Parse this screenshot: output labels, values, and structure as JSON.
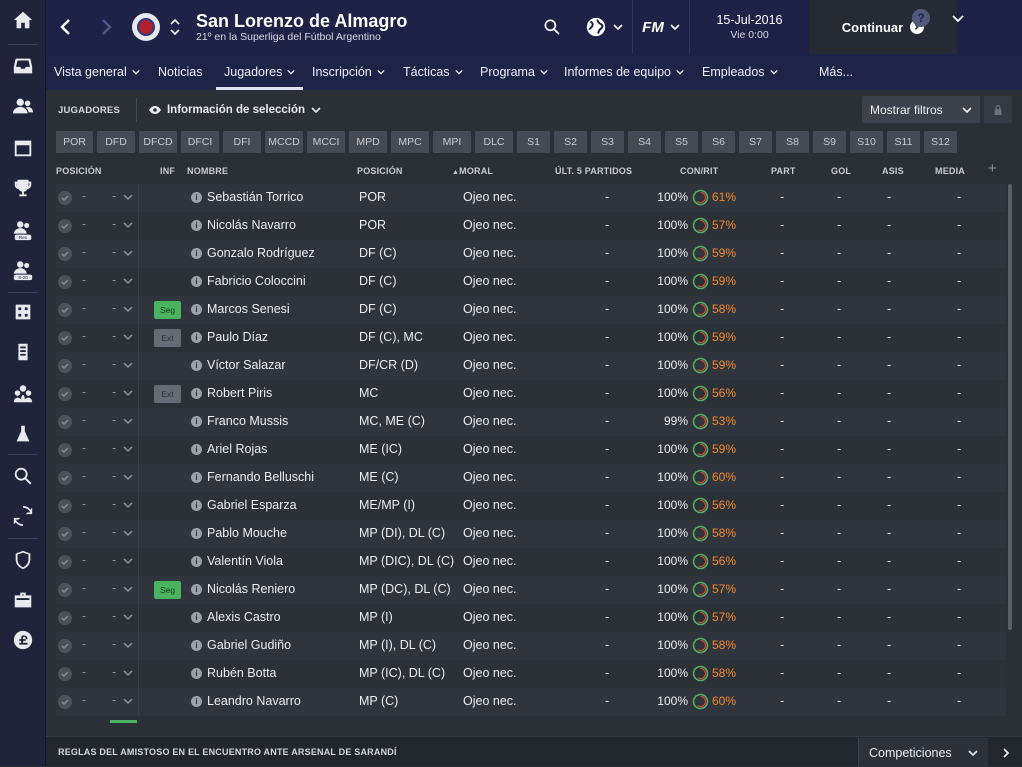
{
  "header": {
    "club_name": "San Lorenzo de Almagro",
    "club_subtitle": "21º en la Superliga del Fútbol Argentino",
    "date": "15-Jul-2016",
    "time": "Vie 0:00",
    "continue_label": "Continuar",
    "fm_label": "FM"
  },
  "tabs": [
    {
      "label": "Vista general",
      "chevron": true
    },
    {
      "label": "Noticias",
      "chevron": false
    },
    {
      "label": "Jugadores",
      "chevron": true,
      "active": true
    },
    {
      "label": "Inscripción",
      "chevron": true
    },
    {
      "label": "Tácticas",
      "chevron": true
    },
    {
      "label": "Programa",
      "chevron": true
    },
    {
      "label": "Informes de equipo",
      "chevron": true
    },
    {
      "label": "Empleados",
      "chevron": true
    },
    {
      "label": "Más...",
      "chevron": true
    }
  ],
  "help_label": "?",
  "filterbar": {
    "section_label": "JUGADORES",
    "view_label": "Información de selección",
    "filters_label": "Mostrar filtros"
  },
  "position_chips": [
    "POR",
    "DFD",
    "DFCD",
    "DFCI",
    "DFI",
    "MCCD",
    "MCCI",
    "MPD",
    "MPC",
    "MPI",
    "DLC",
    "S1",
    "S2",
    "S3",
    "S4",
    "S5",
    "S6",
    "S7",
    "S8",
    "S9",
    "S10",
    "S11",
    "S12"
  ],
  "columns": {
    "posicion": "POSICIÓN",
    "inf": "INF",
    "nombre": "NOMBRE",
    "posicion2": "POSICIÓN",
    "moral": "MORAL",
    "ult5": "ÚLT. 5 PARTIDOS",
    "conrit": "CON/RIT",
    "part": "PART",
    "gol": "GOL",
    "asis": "ASIS",
    "media": "MEDIA"
  },
  "players": [
    {
      "dash1": "-",
      "dash2": "-",
      "inf": "",
      "name": "Sebastián Torrico",
      "position": "POR",
      "morale": "Ojeo nec.",
      "last5": "-",
      "condition": "100%",
      "sharpness": "61%",
      "apps": "-",
      "goals": "-",
      "assists": "-",
      "rating": "-"
    },
    {
      "dash1": "-",
      "dash2": "-",
      "inf": "",
      "name": "Nicolás Navarro",
      "position": "POR",
      "morale": "Ojeo nec.",
      "last5": "-",
      "condition": "100%",
      "sharpness": "57%",
      "apps": "-",
      "goals": "-",
      "assists": "-",
      "rating": "-"
    },
    {
      "dash1": "-",
      "dash2": "-",
      "inf": "",
      "name": "Gonzalo Rodríguez",
      "position": "DF (C)",
      "morale": "Ojeo nec.",
      "last5": "-",
      "condition": "100%",
      "sharpness": "59%",
      "apps": "-",
      "goals": "-",
      "assists": "-",
      "rating": "-"
    },
    {
      "dash1": "-",
      "dash2": "-",
      "inf": "",
      "name": "Fabricio Coloccini",
      "position": "DF (C)",
      "morale": "Ojeo nec.",
      "last5": "-",
      "condition": "100%",
      "sharpness": "59%",
      "apps": "-",
      "goals": "-",
      "assists": "-",
      "rating": "-"
    },
    {
      "dash1": "-",
      "dash2": "-",
      "inf": "Seg",
      "name": "Marcos Senesi",
      "position": "DF (C)",
      "morale": "Ojeo nec.",
      "last5": "-",
      "condition": "100%",
      "sharpness": "58%",
      "apps": "-",
      "goals": "-",
      "assists": "-",
      "rating": "-"
    },
    {
      "dash1": "-",
      "dash2": "-",
      "inf": "Ext",
      "name": "Paulo Díaz",
      "position": "DF (C), MC",
      "morale": "Ojeo nec.",
      "last5": "-",
      "condition": "100%",
      "sharpness": "59%",
      "apps": "-",
      "goals": "-",
      "assists": "-",
      "rating": "-"
    },
    {
      "dash1": "-",
      "dash2": "-",
      "inf": "",
      "name": "Víctor Salazar",
      "position": "DF/CR (D)",
      "morale": "Ojeo nec.",
      "last5": "-",
      "condition": "100%",
      "sharpness": "59%",
      "apps": "-",
      "goals": "-",
      "assists": "-",
      "rating": "-"
    },
    {
      "dash1": "-",
      "dash2": "-",
      "inf": "Ext",
      "name": "Robert Piris",
      "position": "MC",
      "morale": "Ojeo nec.",
      "last5": "-",
      "condition": "100%",
      "sharpness": "56%",
      "apps": "-",
      "goals": "-",
      "assists": "-",
      "rating": "-"
    },
    {
      "dash1": "-",
      "dash2": "-",
      "inf": "",
      "name": "Franco Mussis",
      "position": "MC, ME (C)",
      "morale": "Ojeo nec.",
      "last5": "-",
      "condition": "99%",
      "sharpness": "53%",
      "apps": "-",
      "goals": "-",
      "assists": "-",
      "rating": "-"
    },
    {
      "dash1": "-",
      "dash2": "-",
      "inf": "",
      "name": "Ariel Rojas",
      "position": "ME (IC)",
      "morale": "Ojeo nec.",
      "last5": "-",
      "condition": "100%",
      "sharpness": "59%",
      "apps": "-",
      "goals": "-",
      "assists": "-",
      "rating": "-"
    },
    {
      "dash1": "-",
      "dash2": "-",
      "inf": "",
      "name": "Fernando Belluschi",
      "position": "ME (C)",
      "morale": "Ojeo nec.",
      "last5": "-",
      "condition": "100%",
      "sharpness": "60%",
      "apps": "-",
      "goals": "-",
      "assists": "-",
      "rating": "-"
    },
    {
      "dash1": "-",
      "dash2": "-",
      "inf": "",
      "name": "Gabriel Esparza",
      "position": "ME/MP (I)",
      "morale": "Ojeo nec.",
      "last5": "-",
      "condition": "100%",
      "sharpness": "56%",
      "apps": "-",
      "goals": "-",
      "assists": "-",
      "rating": "-"
    },
    {
      "dash1": "-",
      "dash2": "-",
      "inf": "",
      "name": "Pablo Mouche",
      "position": "MP (DI), DL (C)",
      "morale": "Ojeo nec.",
      "last5": "-",
      "condition": "100%",
      "sharpness": "58%",
      "apps": "-",
      "goals": "-",
      "assists": "-",
      "rating": "-"
    },
    {
      "dash1": "-",
      "dash2": "-",
      "inf": "",
      "name": "Valentín Viola",
      "position": "MP (DIC), DL (C)",
      "morale": "Ojeo nec.",
      "last5": "-",
      "condition": "100%",
      "sharpness": "56%",
      "apps": "-",
      "goals": "-",
      "assists": "-",
      "rating": "-"
    },
    {
      "dash1": "-",
      "dash2": "-",
      "inf": "Seg",
      "name": "Nicolás Reniero",
      "position": "MP (DC), DL (C)",
      "morale": "Ojeo nec.",
      "last5": "-",
      "condition": "100%",
      "sharpness": "57%",
      "apps": "-",
      "goals": "-",
      "assists": "-",
      "rating": "-"
    },
    {
      "dash1": "-",
      "dash2": "-",
      "inf": "",
      "name": "Alexis Castro",
      "position": "MP (I)",
      "morale": "Ojeo nec.",
      "last5": "-",
      "condition": "100%",
      "sharpness": "57%",
      "apps": "-",
      "goals": "-",
      "assists": "-",
      "rating": "-"
    },
    {
      "dash1": "-",
      "dash2": "-",
      "inf": "",
      "name": "Gabriel Gudiño",
      "position": "MP (I), DL (C)",
      "morale": "Ojeo nec.",
      "last5": "-",
      "condition": "100%",
      "sharpness": "58%",
      "apps": "-",
      "goals": "-",
      "assists": "-",
      "rating": "-"
    },
    {
      "dash1": "-",
      "dash2": "-",
      "inf": "",
      "name": "Rubén Botta",
      "position": "MP (IC), DL (C)",
      "morale": "Ojeo nec.",
      "last5": "-",
      "condition": "100%",
      "sharpness": "58%",
      "apps": "-",
      "goals": "-",
      "assists": "-",
      "rating": "-"
    },
    {
      "dash1": "-",
      "dash2": "-",
      "inf": "",
      "name": "Leandro Navarro",
      "position": "MP (C)",
      "morale": "Ojeo nec.",
      "last5": "-",
      "condition": "100%",
      "sharpness": "60%",
      "apps": "-",
      "goals": "-",
      "assists": "-",
      "rating": "-"
    }
  ],
  "footer": {
    "message": "REGLAS DEL AMISTOSO EN EL ENCUENTRO ANTE ARSENAL DE SARANDÍ",
    "competitions_label": "Competiciones"
  },
  "sidebar_icons": [
    "home-icon",
    "inbox-icon",
    "squad-icon",
    "calendar-icon",
    "trophy-icon",
    "reserves-icon",
    "under20-icon",
    "tactics-icon",
    "training-icon",
    "staff-icon",
    "medical-icon",
    "search-icon",
    "transfers-icon",
    "club-icon",
    "briefcase-icon",
    "finances-icon"
  ],
  "sidebar_labels": {
    "reserves": "Res",
    "under20": "S-20"
  },
  "colors": {
    "accent_orange": "#f28a2e",
    "condition_green": "#4bb35f",
    "topbar": "#1d2246"
  }
}
